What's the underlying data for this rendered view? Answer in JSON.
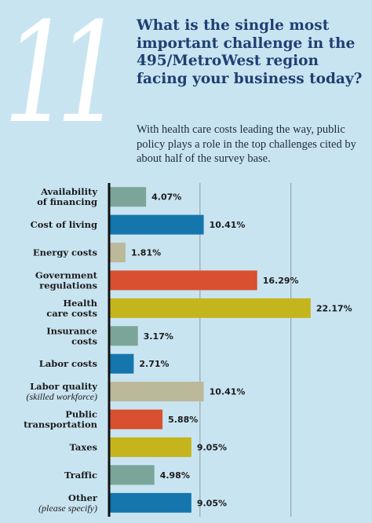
{
  "header": {
    "number": "11",
    "title": "What is the single most important challenge in the 495/MetroWest region facing your business today?",
    "subtitle": "With health care costs leading the way, public policy plays a role in the top challenges cited by about half of the survey base."
  },
  "chart_data": {
    "type": "bar",
    "orientation": "horizontal",
    "title": "",
    "xlabel": "",
    "ylabel": "",
    "xlim": [
      0,
      30
    ],
    "grid": true,
    "categories": [
      {
        "label": "Availability of financing",
        "value": 4.07,
        "value_label": "4.07%",
        "color": "#7aa598"
      },
      {
        "label": "Cost of living",
        "value": 10.41,
        "value_label": "10.41%",
        "color": "#1476ad"
      },
      {
        "label": "Energy costs",
        "value": 1.81,
        "value_label": "1.81%",
        "color": "#bcb89a"
      },
      {
        "label": "Government regulations",
        "value": 16.29,
        "value_label": "16.29%",
        "color": "#d8502f"
      },
      {
        "label": "Health care costs",
        "value": 22.17,
        "value_label": "22.17%",
        "color": "#c5b51c"
      },
      {
        "label": "Insurance costs",
        "value": 3.17,
        "value_label": "3.17%",
        "color": "#7aa598"
      },
      {
        "label": "Labor costs",
        "value": 2.71,
        "value_label": "2.71%",
        "color": "#1476ad"
      },
      {
        "label": "Labor quality",
        "note": "(skilled workforce)",
        "value": 10.41,
        "value_label": "10.41%",
        "color": "#bcb89a"
      },
      {
        "label": "Public transportation",
        "value": 5.88,
        "value_label": "5.88%",
        "color": "#d8502f"
      },
      {
        "label": "Taxes",
        "value": 9.05,
        "value_label": "9.05%",
        "color": "#c5b51c"
      },
      {
        "label": "Traffic",
        "value": 4.98,
        "value_label": "4.98%",
        "color": "#7aa598"
      },
      {
        "label": "Other",
        "note": "(please specify)",
        "value": 9.05,
        "value_label": "9.05%",
        "color": "#1476ad"
      }
    ]
  }
}
